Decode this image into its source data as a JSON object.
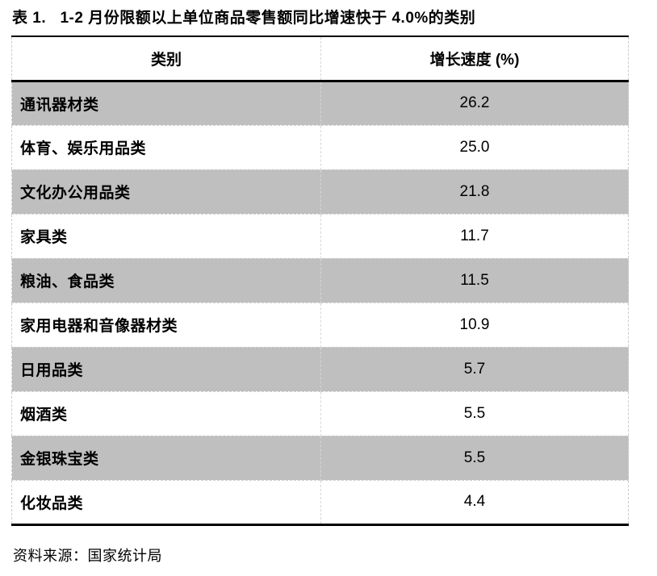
{
  "page": {
    "title": "表 1.   1-2 月份限额以上单位商品零售额同比增速快于 4.0%的类别",
    "source_note": "资料来源：国家统计局"
  },
  "table": {
    "header": {
      "category": "类别",
      "growth": "增长速度 (%)"
    },
    "rows": [
      {
        "category": "通讯器材类",
        "value": "26.2"
      },
      {
        "category": "体育、娱乐用品类",
        "value": "25.0"
      },
      {
        "category": "文化办公用品类",
        "value": "21.8"
      },
      {
        "category": "家具类",
        "value": "11.7"
      },
      {
        "category": "粮油、食品类",
        "value": "11.5"
      },
      {
        "category": "家用电器和音像器材类",
        "value": "10.9"
      },
      {
        "category": "日用品类",
        "value": "5.7"
      },
      {
        "category": "烟酒类",
        "value": "5.5"
      },
      {
        "category": "金银珠宝类",
        "value": "5.5"
      },
      {
        "category": "化妆品类",
        "value": "4.4"
      }
    ]
  },
  "colors": {
    "background": "#ffffff",
    "stripe_gray": "#bfbfbf",
    "rule_black": "#000000",
    "inner_border_dashed": "#d2d2d2",
    "text": "#000000"
  },
  "chart_data": {
    "type": "table",
    "title": "表 1.   1-2 月份限额以上单位商品零售额同比增速快于 4.0%的类别",
    "columns": [
      "类别",
      "增长速度 (%)"
    ],
    "categories": [
      "通讯器材类",
      "体育、娱乐用品类",
      "文化办公用品类",
      "家具类",
      "粮油、食品类",
      "家用电器和音像器材类",
      "日用品类",
      "烟酒类",
      "金银珠宝类",
      "化妆品类"
    ],
    "values": [
      26.2,
      25.0,
      21.8,
      11.7,
      11.5,
      10.9,
      5.7,
      5.5,
      5.5,
      4.4
    ],
    "source": "资料来源：国家统计局"
  }
}
